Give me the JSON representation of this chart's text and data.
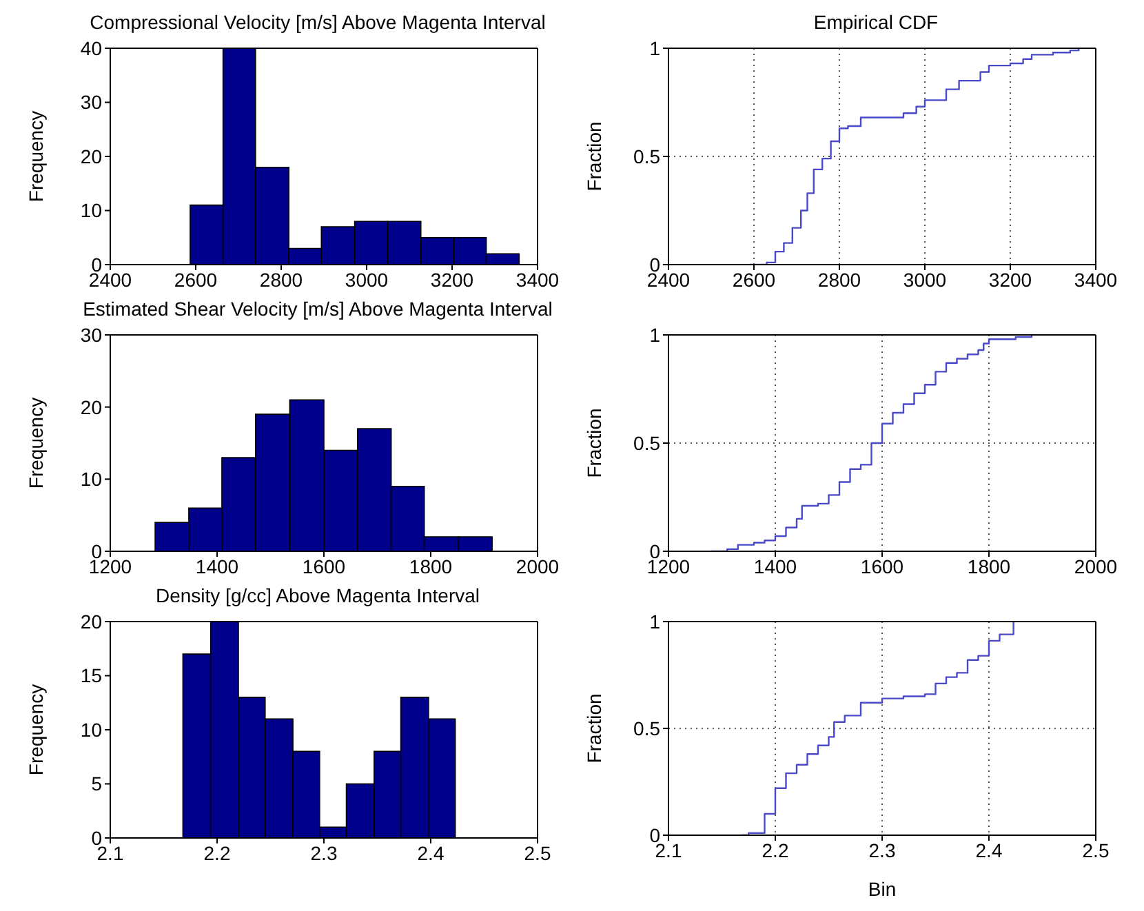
{
  "chart_data": [
    {
      "type": "histogram",
      "title": "Compressional Velocity [m/s] Above Magenta Interval",
      "ylabel": "Frequency",
      "color": "#00008b",
      "bins": [
        2587,
        2664,
        2740,
        2818,
        2894,
        2972,
        3049,
        3127,
        3204,
        3280,
        3357
      ],
      "values": [
        11,
        40,
        18,
        3,
        7,
        8,
        8,
        5,
        5,
        2
      ],
      "xlim": [
        2400,
        3400
      ],
      "xticks": [
        2400,
        2600,
        2800,
        3000,
        3200,
        3400
      ],
      "ylim": [
        0,
        40
      ],
      "yticks": [
        0,
        10,
        20,
        30,
        40
      ],
      "grid": false
    },
    {
      "type": "step",
      "title": "Empirical CDF",
      "ylabel": "Fraction",
      "grid": true,
      "xlim": [
        2400,
        3400
      ],
      "xticks": [
        2400,
        2600,
        2800,
        3000,
        3200,
        3400
      ],
      "ylim": [
        0,
        1
      ],
      "yticks": [
        0,
        0.5,
        1
      ],
      "series": [
        {
          "color": "#4a4ac8",
          "x": [
            2590,
            2630,
            2650,
            2670,
            2690,
            2710,
            2725,
            2740,
            2760,
            2780,
            2800,
            2820,
            2850,
            2900,
            2930,
            2950,
            2980,
            3000,
            3050,
            3080,
            3130,
            3150,
            3200,
            3230,
            3250,
            3300,
            3340,
            3360
          ],
          "values": [
            0,
            0.01,
            0.06,
            0.1,
            0.17,
            0.25,
            0.33,
            0.44,
            0.49,
            0.57,
            0.63,
            0.64,
            0.68,
            0.68,
            0.68,
            0.7,
            0.73,
            0.76,
            0.81,
            0.85,
            0.89,
            0.92,
            0.93,
            0.95,
            0.97,
            0.98,
            0.99,
            1
          ]
        }
      ]
    },
    {
      "type": "histogram",
      "title": "Estimated Shear Velocity [m/s] Above Magenta Interval",
      "ylabel": "Frequency",
      "color": "#00008b",
      "bins": [
        1284,
        1347,
        1409,
        1472,
        1536,
        1600,
        1663,
        1726,
        1788,
        1852,
        1915
      ],
      "values": [
        4,
        6,
        13,
        19,
        21,
        14,
        17,
        9,
        2,
        2
      ],
      "xlim": [
        1200,
        2000
      ],
      "xticks": [
        1200,
        1400,
        1600,
        1800,
        2000
      ],
      "ylim": [
        0,
        30
      ],
      "yticks": [
        0,
        10,
        20,
        30
      ],
      "grid": false
    },
    {
      "type": "step",
      "ylabel": "Fraction",
      "grid": true,
      "xlim": [
        1200,
        2000
      ],
      "xticks": [
        1200,
        1400,
        1600,
        1800,
        2000
      ],
      "ylim": [
        0,
        1
      ],
      "yticks": [
        0,
        0.5,
        1
      ],
      "series": [
        {
          "color": "#4a4ac8",
          "x": [
            1280,
            1310,
            1330,
            1360,
            1380,
            1400,
            1420,
            1440,
            1450,
            1480,
            1500,
            1520,
            1540,
            1560,
            1580,
            1600,
            1620,
            1640,
            1660,
            1680,
            1700,
            1720,
            1740,
            1760,
            1780,
            1790,
            1800,
            1850,
            1880
          ],
          "values": [
            0,
            0.01,
            0.03,
            0.04,
            0.05,
            0.07,
            0.11,
            0.15,
            0.21,
            0.22,
            0.26,
            0.32,
            0.38,
            0.4,
            0.5,
            0.59,
            0.64,
            0.68,
            0.73,
            0.77,
            0.83,
            0.87,
            0.89,
            0.91,
            0.93,
            0.96,
            0.98,
            0.99,
            1
          ]
        }
      ]
    },
    {
      "type": "histogram",
      "title": "Density [g/cc] Above Magenta Interval",
      "ylabel": "Frequency",
      "color": "#00008b",
      "bins": [
        2.168,
        2.194,
        2.22,
        2.245,
        2.271,
        2.296,
        2.321,
        2.347,
        2.372,
        2.398,
        2.423
      ],
      "values": [
        17,
        20,
        13,
        11,
        8,
        1,
        5,
        8,
        13,
        11
      ],
      "xlim": [
        2.1,
        2.5
      ],
      "xticks": [
        2.1,
        2.2,
        2.3,
        2.4,
        2.5
      ],
      "ylim": [
        0,
        20
      ],
      "yticks": [
        0,
        5,
        10,
        15,
        20
      ],
      "grid": false
    },
    {
      "type": "step",
      "ylabel": "Fraction",
      "xlabel": "Bin",
      "grid": true,
      "xlim": [
        2.1,
        2.5
      ],
      "xticks": [
        2.1,
        2.2,
        2.3,
        2.4,
        2.5
      ],
      "ylim": [
        0,
        1
      ],
      "yticks": [
        0,
        0.5,
        1
      ],
      "series": [
        {
          "color": "#4a4ac8",
          "x": [
            2.168,
            2.175,
            2.19,
            2.2,
            2.21,
            2.22,
            2.23,
            2.24,
            2.25,
            2.255,
            2.265,
            2.28,
            2.3,
            2.32,
            2.34,
            2.35,
            2.36,
            2.37,
            2.38,
            2.39,
            2.4,
            2.41,
            2.423
          ],
          "values": [
            0,
            0.01,
            0.1,
            0.22,
            0.29,
            0.33,
            0.38,
            0.42,
            0.46,
            0.53,
            0.56,
            0.62,
            0.64,
            0.65,
            0.66,
            0.71,
            0.74,
            0.76,
            0.82,
            0.84,
            0.91,
            0.94,
            1
          ]
        }
      ]
    }
  ]
}
